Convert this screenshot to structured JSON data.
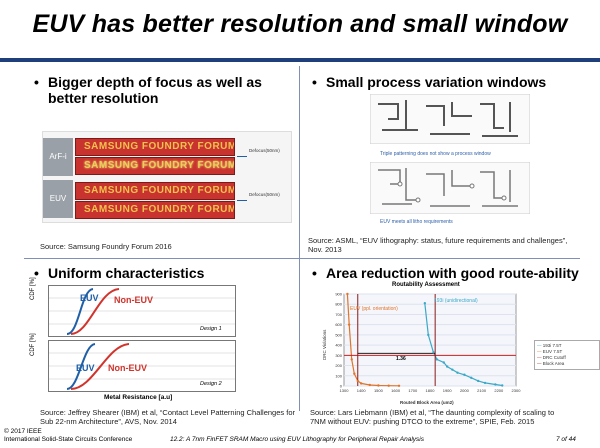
{
  "title": "EUV has better resolution and small window",
  "q1": {
    "bullet": "•",
    "heading_line1": "Bigger depth of focus as well as",
    "heading_line2": "better resolution",
    "label_arfi": "ArF-i",
    "label_euv": "EUV",
    "mask_text": "SAMSUNG FOUNDRY FORUM",
    "defocus_label": "Defocus(50nm)",
    "source": "Source: Samsung Foundry Forum 2016"
  },
  "q2": {
    "bullet": "•",
    "heading": "Small process variation windows",
    "caption_top": "Triple patterning does not show a process window",
    "caption_bottom": "EUV meets all litho requirements",
    "source_line1": "Source: ASML, “EUV lithography: status, future requirements and challenges”,",
    "source_line2": "Nov. 2013"
  },
  "q3": {
    "bullet": "•",
    "heading": "Uniform characteristics",
    "ylabel": "CDF [%]",
    "euv_label": "EUV",
    "noneuv_label": "Non-EUV",
    "design1": "Design 1",
    "design2": "Design 2",
    "xlabel": "Metal Resistance [a.u]",
    "source_line1": "Source: Jeffrey Shearer (IBM) et al, “Contact Level Patterning Challenges for",
    "source_line2": "Sub 22-nm Architecture”,  AVS, Nov. 2014"
  },
  "q4": {
    "bullet": "•",
    "heading": "Area reduction with good route-ability",
    "chart_title": "Routability Assessment",
    "ylabel": "DRC Violations",
    "xlabel": "Routed Block Area (um2)",
    "label_193i": "193i (unidirectional)",
    "label_euv": "EUV (ppl. orientation)",
    "ratio_label": "1.36",
    "legend": [
      "193i 7.5T",
      "EUV 7.5T",
      "DRC Cutoff",
      "Block Area"
    ],
    "source_line1": "Source: Lars Liebmann (IBM) et al, “The daunting complexity of scaling to",
    "source_line2": "7NM without EUV: pushing DTCO to the extreme”, SPIE, Feb. 2015",
    "chart_data": {
      "type": "line",
      "title": "Routability Assessment",
      "xlabel": "Routed Block Area (um2)",
      "ylabel": "DRC Violations",
      "x_ticks": [
        1300,
        1400,
        1500,
        1600,
        1700,
        1800,
        1900,
        2000,
        2100,
        2200,
        2300
      ],
      "y_ticks": [
        0,
        100,
        200,
        300,
        400,
        500,
        600,
        700,
        800,
        900
      ],
      "xlim": [
        1300,
        2300
      ],
      "ylim": [
        0,
        900
      ],
      "series": [
        {
          "name": "193i 7.5T",
          "color": "#3aa9c8",
          "x": [
            1770,
            1790,
            1820,
            1840,
            1880,
            1900,
            1930,
            1960,
            2000,
            2040,
            2080,
            2120,
            2180,
            2220
          ],
          "y": [
            810,
            500,
            330,
            260,
            230,
            190,
            160,
            130,
            110,
            80,
            50,
            30,
            15,
            5
          ]
        },
        {
          "name": "EUV 7.5T",
          "color": "#e0742a",
          "x": [
            1320,
            1330,
            1345,
            1360,
            1380,
            1400,
            1450,
            1500,
            1560,
            1620
          ],
          "y": [
            900,
            600,
            260,
            120,
            50,
            25,
            10,
            5,
            3,
            2
          ]
        }
      ],
      "hlines": [
        {
          "name": "DRC Cutoff",
          "y": 300,
          "color": "#cc2222"
        }
      ],
      "vlines": [
        {
          "name": "Block Area",
          "x": [
            1380,
            1830
          ],
          "color": "#8b1a1a"
        }
      ]
    }
  },
  "footer": {
    "copyright": "© 2017 IEEE",
    "conference": "International Solid-State Circuits Conference",
    "session": "12.2: A 7nm FinFET SRAM Macro using EUV Lithography for Peripheral Repair Analysis",
    "page": "7 of 44"
  },
  "colors": {
    "accent": "#1f3f7a",
    "euv": "#1f5fa8",
    "non_euv": "#d0342c"
  }
}
